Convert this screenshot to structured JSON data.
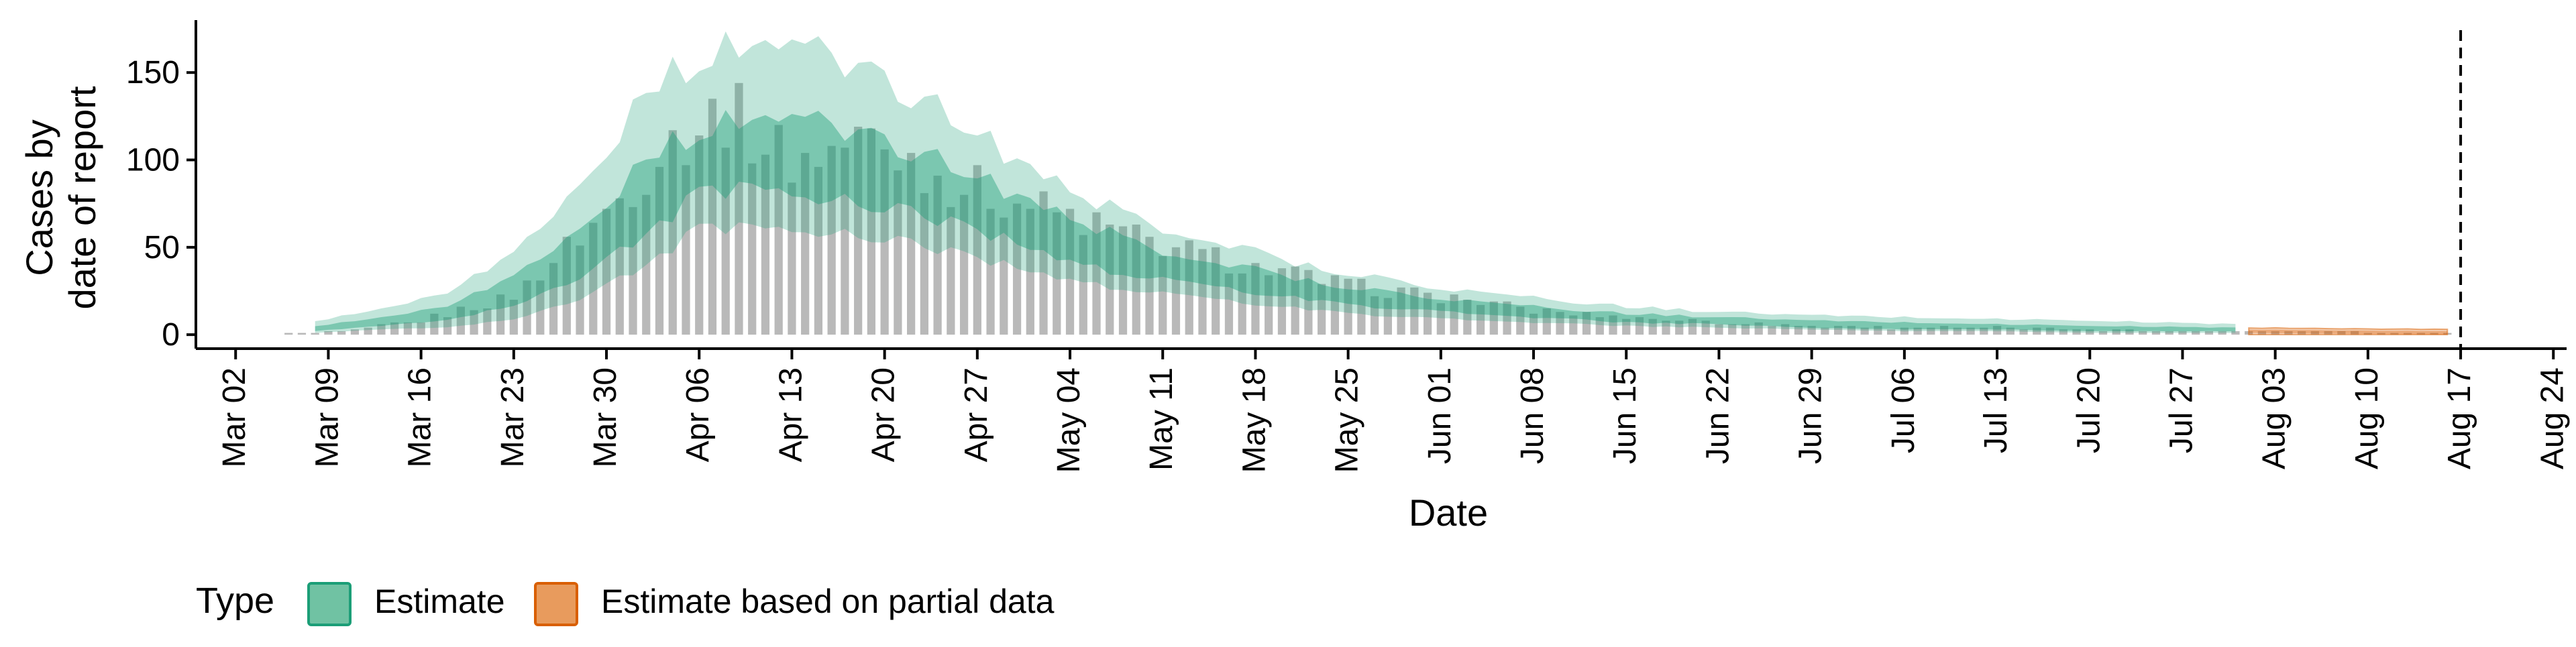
{
  "chart_data": {
    "type": "area",
    "xlabel": "Date",
    "ylabel_lines": [
      "Cases by",
      "date of report"
    ],
    "x_range": [
      "2020-02-28",
      "2020-08-25"
    ],
    "ylim": [
      -8,
      180
    ],
    "y_ticks": [
      0,
      50,
      100,
      150
    ],
    "x_ticks": [
      {
        "date": "2020-03-02",
        "label": "Mar 02"
      },
      {
        "date": "2020-03-09",
        "label": "Mar 09"
      },
      {
        "date": "2020-03-16",
        "label": "Mar 16"
      },
      {
        "date": "2020-03-23",
        "label": "Mar 23"
      },
      {
        "date": "2020-03-30",
        "label": "Mar 30"
      },
      {
        "date": "2020-04-06",
        "label": "Apr 06"
      },
      {
        "date": "2020-04-13",
        "label": "Apr 13"
      },
      {
        "date": "2020-04-20",
        "label": "Apr 20"
      },
      {
        "date": "2020-04-27",
        "label": "Apr 27"
      },
      {
        "date": "2020-05-04",
        "label": "May 04"
      },
      {
        "date": "2020-05-11",
        "label": "May 11"
      },
      {
        "date": "2020-05-18",
        "label": "May 18"
      },
      {
        "date": "2020-05-25",
        "label": "May 25"
      },
      {
        "date": "2020-06-01",
        "label": "Jun 01"
      },
      {
        "date": "2020-06-08",
        "label": "Jun 08"
      },
      {
        "date": "2020-06-15",
        "label": "Jun 15"
      },
      {
        "date": "2020-06-22",
        "label": "Jun 22"
      },
      {
        "date": "2020-06-29",
        "label": "Jun 29"
      },
      {
        "date": "2020-07-06",
        "label": "Jul 06"
      },
      {
        "date": "2020-07-13",
        "label": "Jul 13"
      },
      {
        "date": "2020-07-20",
        "label": "Jul 20"
      },
      {
        "date": "2020-07-27",
        "label": "Jul 27"
      },
      {
        "date": "2020-08-03",
        "label": "Aug 03"
      },
      {
        "date": "2020-08-10",
        "label": "Aug 10"
      },
      {
        "date": "2020-08-17",
        "label": "Aug 17"
      },
      {
        "date": "2020-08-24",
        "label": "Aug 24"
      }
    ],
    "forecast_date": "2020-08-17",
    "estimate_dates": [
      "2020-03-08",
      "2020-07-31"
    ],
    "partial_dates": [
      "2020-08-01",
      "2020-08-16"
    ],
    "key_points": [
      {
        "date": "2020-03-08",
        "median": 3,
        "inner": [
          2,
          5
        ],
        "outer": [
          1,
          8
        ]
      },
      {
        "date": "2020-03-13",
        "median": 7,
        "inner": [
          5,
          10
        ],
        "outer": [
          3,
          15
        ]
      },
      {
        "date": "2020-03-18",
        "median": 12,
        "inner": [
          8,
          17
        ],
        "outer": [
          4,
          25
        ]
      },
      {
        "date": "2020-03-23",
        "median": 24,
        "inner": [
          17,
          33
        ],
        "outer": [
          9,
          46
        ]
      },
      {
        "date": "2020-03-28",
        "median": 45,
        "inner": [
          32,
          60
        ],
        "outer": [
          20,
          85
        ]
      },
      {
        "date": "2020-04-02",
        "median": 78,
        "inner": [
          58,
          100
        ],
        "outer": [
          40,
          138
        ]
      },
      {
        "date": "2020-04-06",
        "median": 105,
        "inner": [
          80,
          118
        ],
        "outer": [
          60,
          160
        ]
      },
      {
        "date": "2020-04-10",
        "median": 112,
        "inner": [
          85,
          125
        ],
        "outer": [
          62,
          168
        ]
      },
      {
        "date": "2020-04-15",
        "median": 106,
        "inner": [
          80,
          120
        ],
        "outer": [
          60,
          160
        ]
      },
      {
        "date": "2020-04-20",
        "median": 97,
        "inner": [
          73,
          110
        ],
        "outer": [
          55,
          145
        ]
      },
      {
        "date": "2020-04-25",
        "median": 85,
        "inner": [
          65,
          97
        ],
        "outer": [
          48,
          125
        ]
      },
      {
        "date": "2020-04-30",
        "median": 68,
        "inner": [
          52,
          80
        ],
        "outer": [
          38,
          100
        ]
      },
      {
        "date": "2020-05-05",
        "median": 52,
        "inner": [
          40,
          63
        ],
        "outer": [
          30,
          78
        ]
      },
      {
        "date": "2020-05-10",
        "median": 42,
        "inner": [
          32,
          50
        ],
        "outer": [
          24,
          64
        ]
      },
      {
        "date": "2020-05-15",
        "median": 35,
        "inner": [
          27,
          42
        ],
        "outer": [
          20,
          54
        ]
      },
      {
        "date": "2020-05-20",
        "median": 28,
        "inner": [
          22,
          34
        ],
        "outer": [
          16,
          43
        ]
      },
      {
        "date": "2020-05-25",
        "median": 22,
        "inner": [
          17,
          27
        ],
        "outer": [
          12,
          35
        ]
      },
      {
        "date": "2020-06-01",
        "median": 17,
        "inner": [
          13,
          21
        ],
        "outer": [
          9,
          27
        ]
      },
      {
        "date": "2020-06-08",
        "median": 13,
        "inner": [
          10,
          16
        ],
        "outer": [
          7,
          21
        ]
      },
      {
        "date": "2020-06-15",
        "median": 10,
        "inner": [
          7,
          12
        ],
        "outer": [
          5,
          16
        ]
      },
      {
        "date": "2020-06-22",
        "median": 8,
        "inner": [
          6,
          10
        ],
        "outer": [
          4,
          13
        ]
      },
      {
        "date": "2020-06-29",
        "median": 6,
        "inner": [
          4,
          8
        ],
        "outer": [
          3,
          11
        ]
      },
      {
        "date": "2020-07-06",
        "median": 5,
        "inner": [
          3,
          7
        ],
        "outer": [
          2,
          10
        ]
      },
      {
        "date": "2020-07-13",
        "median": 4,
        "inner": [
          3,
          6
        ],
        "outer": [
          2,
          9
        ]
      },
      {
        "date": "2020-07-20",
        "median": 3,
        "inner": [
          2,
          5
        ],
        "outer": [
          1,
          8
        ]
      },
      {
        "date": "2020-07-31",
        "median": 3,
        "inner": [
          2,
          4
        ],
        "outer": [
          1,
          6
        ]
      },
      {
        "date": "2020-08-01",
        "median": 2,
        "inner": [
          1,
          3
        ],
        "outer": [
          0,
          4
        ]
      },
      {
        "date": "2020-08-16",
        "median": 1,
        "inner": [
          0,
          2
        ],
        "outer": [
          0,
          3
        ]
      }
    ],
    "bar_peaks": [
      {
        "date": "2020-03-04",
        "value": 0
      },
      {
        "date": "2020-03-10",
        "value": 2
      },
      {
        "date": "2020-03-16",
        "value": 8
      },
      {
        "date": "2020-03-23",
        "value": 22
      },
      {
        "date": "2020-03-30",
        "value": 70
      },
      {
        "date": "2020-04-04",
        "value": 112
      },
      {
        "date": "2020-04-08",
        "value": 128
      },
      {
        "date": "2020-04-13",
        "value": 100
      },
      {
        "date": "2020-04-19",
        "value": 112
      },
      {
        "date": "2020-04-25",
        "value": 88
      },
      {
        "date": "2020-05-02",
        "value": 72
      },
      {
        "date": "2020-05-09",
        "value": 55
      },
      {
        "date": "2020-05-17",
        "value": 40
      },
      {
        "date": "2020-05-25",
        "value": 28
      },
      {
        "date": "2020-06-01",
        "value": 22
      },
      {
        "date": "2020-06-08",
        "value": 14
      },
      {
        "date": "2020-06-15",
        "value": 10
      },
      {
        "date": "2020-06-22",
        "value": 7
      },
      {
        "date": "2020-06-29",
        "value": 5
      },
      {
        "date": "2020-07-06",
        "value": 4
      },
      {
        "date": "2020-07-13",
        "value": 4
      },
      {
        "date": "2020-07-20",
        "value": 3
      },
      {
        "date": "2020-07-28",
        "value": 2
      },
      {
        "date": "2020-08-05",
        "value": 2
      },
      {
        "date": "2020-08-16",
        "value": 1
      }
    ],
    "colors": {
      "estimate_outer": "#1b9e77",
      "estimate_inner": "#1b9e77",
      "partial_outer": "#d95f02",
      "bars": "#808080",
      "legend_estimate_fill": "#70c2a3",
      "legend_estimate_stroke": "#1b9e77",
      "legend_partial_fill": "#e89b5d",
      "legend_partial_stroke": "#d95f02"
    },
    "legend": {
      "title": "Type",
      "placement": "bottom-left",
      "items": [
        {
          "label": "Estimate",
          "key": "estimate"
        },
        {
          "label": "Estimate based on partial data",
          "key": "partial"
        }
      ]
    }
  }
}
